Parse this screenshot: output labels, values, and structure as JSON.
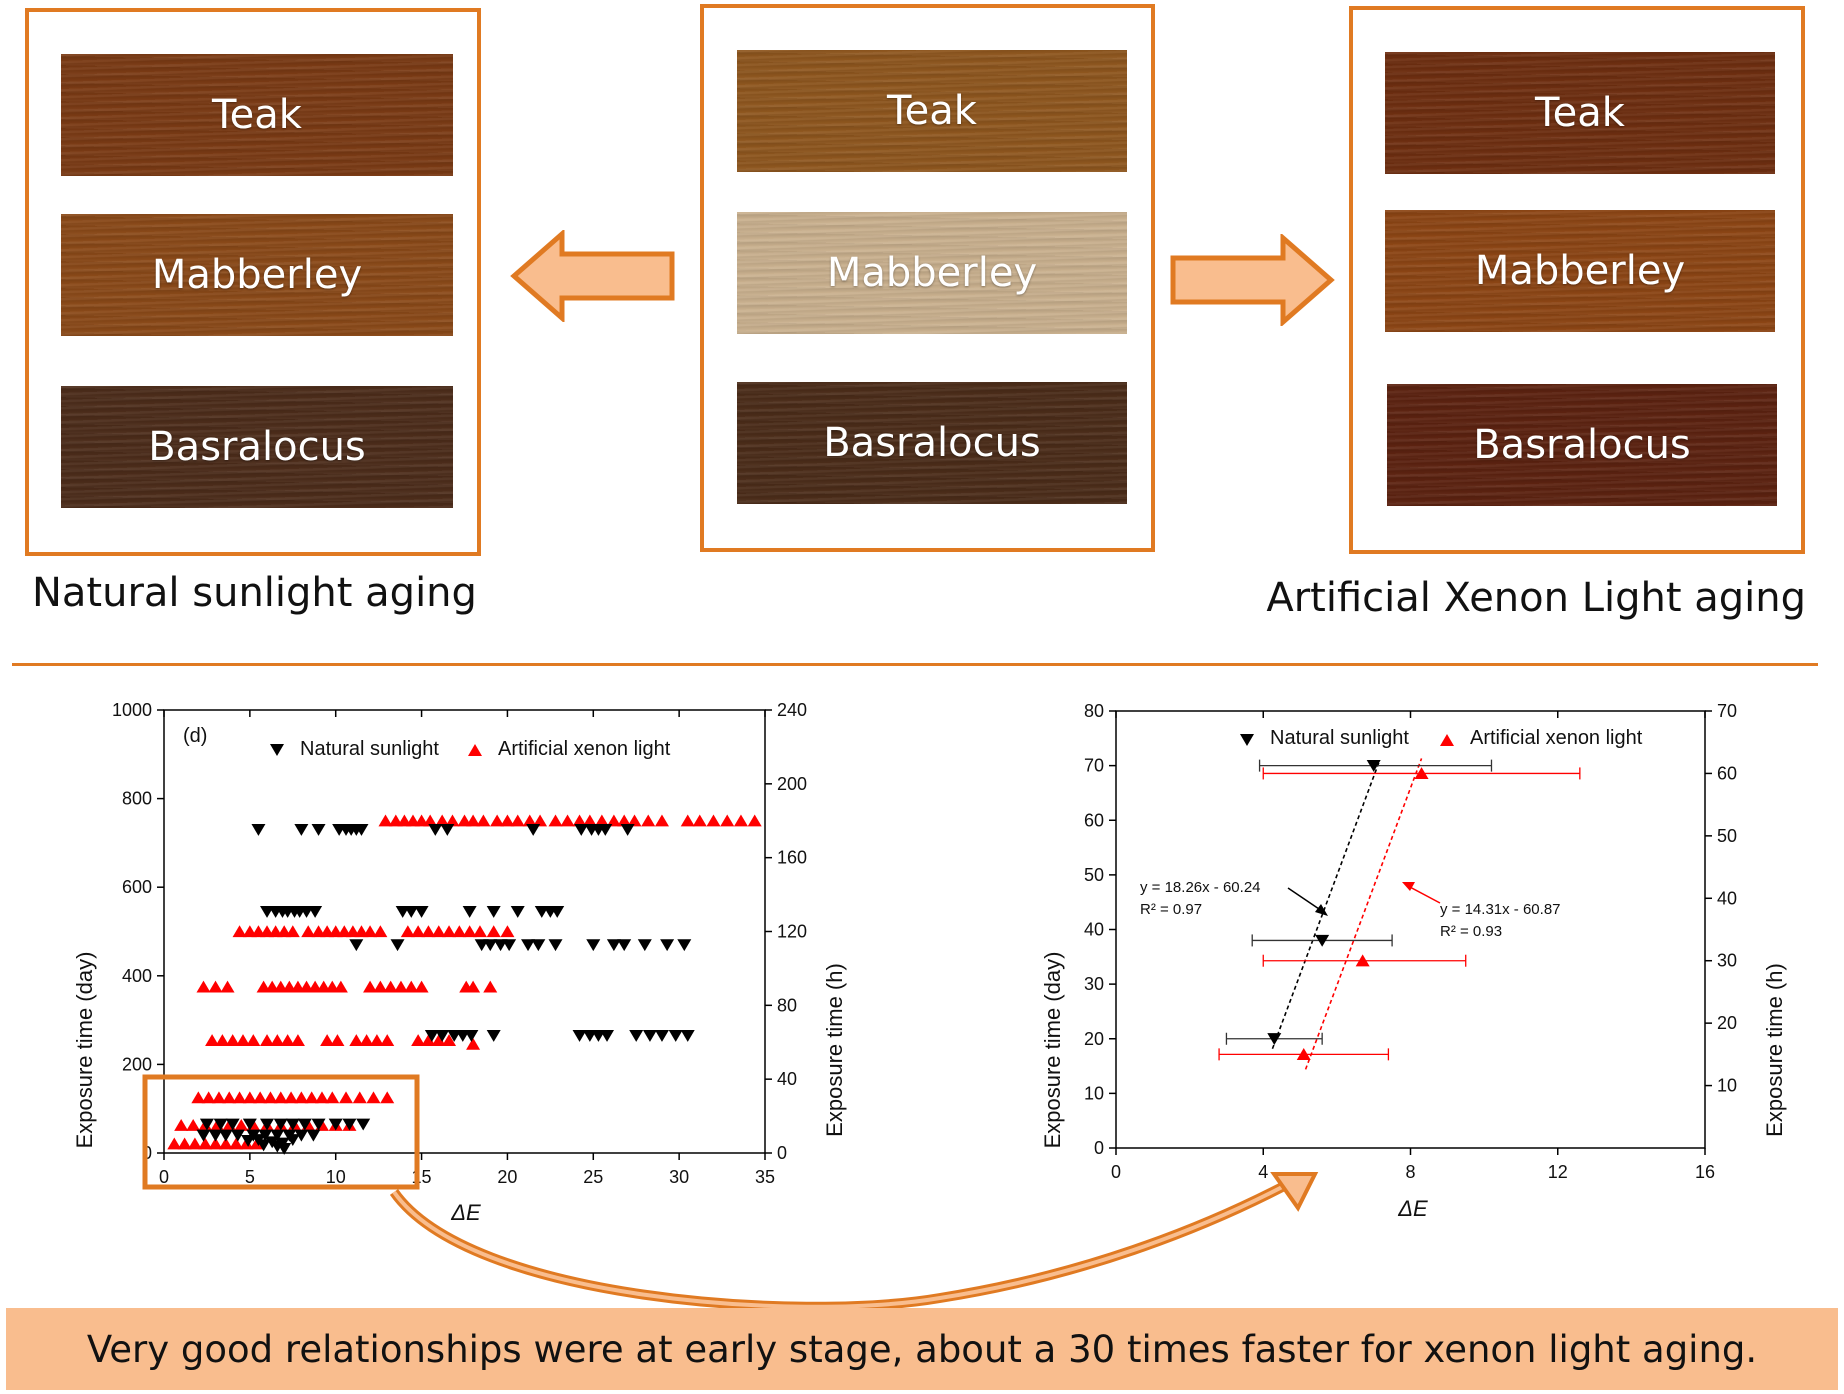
{
  "top": {
    "panels": [
      {
        "id": "natural",
        "swatches": [
          {
            "label": "Teak",
            "color": "#7a3a14"
          },
          {
            "label": "Mabberley",
            "color": "#8a4918"
          },
          {
            "label": "Basralocus",
            "color": "#4c2c1a"
          }
        ]
      },
      {
        "id": "original",
        "swatches": [
          {
            "label": "Teak",
            "color": "#8e561e"
          },
          {
            "label": "Mabberley",
            "color": "#c9b08e"
          },
          {
            "label": "Basralocus",
            "color": "#4b2c19"
          }
        ]
      },
      {
        "id": "xenon",
        "swatches": [
          {
            "label": "Teak",
            "color": "#6e2e10"
          },
          {
            "label": "Mabberley",
            "color": "#8c4514"
          },
          {
            "label": "Basralocus",
            "color": "#5c2210"
          }
        ]
      }
    ],
    "caption_left": "Natural sunlight aging",
    "caption_right": "Artificial Xenon Light aging",
    "accent_color": "#e07a22",
    "arrow_fill": "#f9bd8e"
  },
  "chart_data": [
    {
      "type": "scatter",
      "panel_label": "(d)",
      "xlabel": "ΔE",
      "ylabel": "Exposure time (day)",
      "y2label": "Exposure time (h)",
      "xlim": [
        0,
        35
      ],
      "ylim": [
        0,
        1000
      ],
      "y2lim": [
        0,
        240
      ],
      "xticks": [
        0,
        5,
        10,
        15,
        20,
        25,
        30,
        35
      ],
      "yticks": [
        0,
        200,
        400,
        600,
        800,
        1000
      ],
      "y2ticks": [
        0,
        40,
        80,
        120,
        160,
        200,
        240
      ],
      "legend_placement": "top",
      "series": [
        {
          "name": "Natural sunlight",
          "marker": "triangle-down",
          "color": "#000000",
          "axis": "y",
          "points": [
            [
              5.5,
              730
            ],
            [
              8.0,
              730
            ],
            [
              9.0,
              730
            ],
            [
              10.2,
              730
            ],
            [
              10.6,
              730
            ],
            [
              10.9,
              730
            ],
            [
              11.2,
              730
            ],
            [
              11.5,
              730
            ],
            [
              15.8,
              730
            ],
            [
              16.5,
              730
            ],
            [
              21.5,
              730
            ],
            [
              24.3,
              730
            ],
            [
              24.9,
              730
            ],
            [
              25.3,
              730
            ],
            [
              25.7,
              730
            ],
            [
              27.0,
              730
            ],
            [
              6.0,
              545
            ],
            [
              6.5,
              545
            ],
            [
              6.9,
              545
            ],
            [
              7.2,
              545
            ],
            [
              7.6,
              545
            ],
            [
              7.9,
              545
            ],
            [
              8.3,
              545
            ],
            [
              8.8,
              545
            ],
            [
              13.9,
              545
            ],
            [
              14.4,
              545
            ],
            [
              15.0,
              545
            ],
            [
              17.8,
              545
            ],
            [
              19.2,
              545
            ],
            [
              20.6,
              545
            ],
            [
              22.0,
              545
            ],
            [
              22.5,
              545
            ],
            [
              22.9,
              545
            ],
            [
              11.2,
              470
            ],
            [
              13.6,
              470
            ],
            [
              18.5,
              470
            ],
            [
              19.0,
              470
            ],
            [
              19.6,
              470
            ],
            [
              20.1,
              470
            ],
            [
              21.2,
              470
            ],
            [
              21.8,
              470
            ],
            [
              22.8,
              470
            ],
            [
              25.0,
              470
            ],
            [
              26.2,
              470
            ],
            [
              26.8,
              470
            ],
            [
              28.0,
              470
            ],
            [
              29.3,
              470
            ],
            [
              30.3,
              470
            ],
            [
              15.6,
              265
            ],
            [
              16.2,
              265
            ],
            [
              16.9,
              265
            ],
            [
              17.4,
              265
            ],
            [
              17.9,
              265
            ],
            [
              19.2,
              265
            ],
            [
              24.2,
              265
            ],
            [
              24.8,
              265
            ],
            [
              25.3,
              265
            ],
            [
              25.8,
              265
            ],
            [
              27.5,
              265
            ],
            [
              28.3,
              265
            ],
            [
              29.0,
              265
            ],
            [
              29.8,
              265
            ],
            [
              30.5,
              265
            ],
            [
              2.5,
              65
            ],
            [
              3.3,
              65
            ],
            [
              4.0,
              65
            ],
            [
              5.0,
              65
            ],
            [
              6.0,
              65
            ],
            [
              6.8,
              65
            ],
            [
              7.5,
              65
            ],
            [
              8.2,
              65
            ],
            [
              9.0,
              65
            ],
            [
              10.0,
              65
            ],
            [
              10.8,
              65
            ],
            [
              11.6,
              65
            ],
            [
              2.3,
              40
            ],
            [
              3.0,
              40
            ],
            [
              3.6,
              40
            ],
            [
              4.3,
              40
            ],
            [
              5.2,
              40
            ],
            [
              5.9,
              40
            ],
            [
              6.6,
              40
            ],
            [
              7.3,
              40
            ],
            [
              8.0,
              40
            ],
            [
              8.7,
              40
            ],
            [
              5.5,
              30
            ],
            [
              6.3,
              25
            ],
            [
              6.9,
              22
            ],
            [
              7.5,
              30
            ],
            [
              6.6,
              15
            ],
            [
              7.0,
              10
            ],
            [
              5.8,
              18
            ],
            [
              4.9,
              28
            ]
          ]
        },
        {
          "name": "Artificial xenon light",
          "marker": "triangle-up",
          "color": "#ff0000",
          "axis": "y2",
          "points": [
            [
              12.9,
              180
            ],
            [
              13.5,
              180
            ],
            [
              14.0,
              180
            ],
            [
              14.5,
              180
            ],
            [
              15.0,
              180
            ],
            [
              15.5,
              180
            ],
            [
              16.2,
              180
            ],
            [
              16.8,
              180
            ],
            [
              17.5,
              180
            ],
            [
              18.0,
              180
            ],
            [
              18.6,
              180
            ],
            [
              19.4,
              180
            ],
            [
              20.0,
              180
            ],
            [
              20.6,
              180
            ],
            [
              21.3,
              180
            ],
            [
              21.9,
              180
            ],
            [
              22.8,
              180
            ],
            [
              23.5,
              180
            ],
            [
              24.2,
              180
            ],
            [
              24.8,
              180
            ],
            [
              25.5,
              180
            ],
            [
              26.2,
              180
            ],
            [
              26.8,
              180
            ],
            [
              27.4,
              180
            ],
            [
              28.2,
              180
            ],
            [
              29.0,
              180
            ],
            [
              30.5,
              180
            ],
            [
              31.2,
              180
            ],
            [
              32.0,
              180
            ],
            [
              32.8,
              180
            ],
            [
              33.6,
              180
            ],
            [
              34.4,
              180
            ],
            [
              4.4,
              120
            ],
            [
              5.0,
              120
            ],
            [
              5.5,
              120
            ],
            [
              6.0,
              120
            ],
            [
              6.5,
              120
            ],
            [
              7.0,
              120
            ],
            [
              7.5,
              120
            ],
            [
              8.4,
              120
            ],
            [
              9.0,
              120
            ],
            [
              9.5,
              120
            ],
            [
              10.0,
              120
            ],
            [
              10.5,
              120
            ],
            [
              11.0,
              120
            ],
            [
              11.5,
              120
            ],
            [
              12.0,
              120
            ],
            [
              12.6,
              120
            ],
            [
              14.2,
              120
            ],
            [
              14.8,
              120
            ],
            [
              15.4,
              120
            ],
            [
              16.0,
              120
            ],
            [
              16.6,
              120
            ],
            [
              17.2,
              120
            ],
            [
              17.8,
              120
            ],
            [
              18.4,
              120
            ],
            [
              19.2,
              120
            ],
            [
              20.0,
              120
            ],
            [
              2.3,
              90
            ],
            [
              3.0,
              90
            ],
            [
              3.7,
              90
            ],
            [
              5.8,
              90
            ],
            [
              6.3,
              90
            ],
            [
              6.8,
              90
            ],
            [
              7.3,
              90
            ],
            [
              7.8,
              90
            ],
            [
              8.3,
              90
            ],
            [
              8.8,
              90
            ],
            [
              9.3,
              90
            ],
            [
              9.8,
              90
            ],
            [
              10.3,
              90
            ],
            [
              12.0,
              90
            ],
            [
              12.6,
              90
            ],
            [
              13.2,
              90
            ],
            [
              13.8,
              90
            ],
            [
              14.4,
              90
            ],
            [
              15.0,
              90
            ],
            [
              17.6,
              90
            ],
            [
              18.0,
              90
            ],
            [
              19.0,
              90
            ],
            [
              2.8,
              61
            ],
            [
              3.4,
              61
            ],
            [
              4.0,
              61
            ],
            [
              4.6,
              61
            ],
            [
              5.2,
              61
            ],
            [
              6.0,
              61
            ],
            [
              6.6,
              61
            ],
            [
              7.2,
              61
            ],
            [
              7.8,
              61
            ],
            [
              9.5,
              61
            ],
            [
              10.1,
              61
            ],
            [
              11.2,
              61
            ],
            [
              11.8,
              61
            ],
            [
              12.4,
              61
            ],
            [
              13.0,
              61
            ],
            [
              14.8,
              61
            ],
            [
              15.4,
              61
            ],
            [
              16.0,
              61
            ],
            [
              16.6,
              61
            ],
            [
              18.0,
              59
            ],
            [
              2.0,
              30
            ],
            [
              2.6,
              30
            ],
            [
              3.2,
              30
            ],
            [
              3.8,
              30
            ],
            [
              4.4,
              30
            ],
            [
              5.0,
              30
            ],
            [
              5.6,
              30
            ],
            [
              6.2,
              30
            ],
            [
              6.8,
              30
            ],
            [
              7.4,
              30
            ],
            [
              8.0,
              30
            ],
            [
              8.6,
              30
            ],
            [
              9.2,
              30
            ],
            [
              9.8,
              30
            ],
            [
              10.6,
              30
            ],
            [
              11.4,
              30
            ],
            [
              12.2,
              30
            ],
            [
              13.0,
              30
            ],
            [
              1.0,
              15
            ],
            [
              1.7,
              15
            ],
            [
              2.4,
              15
            ],
            [
              3.1,
              15
            ],
            [
              3.8,
              15
            ],
            [
              4.5,
              15
            ],
            [
              5.2,
              15
            ],
            [
              6.0,
              15
            ],
            [
              6.8,
              15
            ],
            [
              7.6,
              15
            ],
            [
              8.4,
              15
            ],
            [
              9.2,
              15
            ],
            [
              10.0,
              15
            ],
            [
              10.8,
              15
            ],
            [
              0.6,
              5
            ],
            [
              1.2,
              5
            ],
            [
              1.8,
              5
            ],
            [
              2.4,
              5
            ],
            [
              3.0,
              5
            ],
            [
              3.6,
              5
            ],
            [
              4.2,
              5
            ],
            [
              4.8,
              5
            ],
            [
              5.4,
              5
            ]
          ]
        }
      ]
    },
    {
      "type": "scatter",
      "xlabel": "ΔE",
      "ylabel": "Exposure time (day)",
      "y2label": "Exposure time (h)",
      "xlim": [
        0,
        16
      ],
      "ylim": [
        0,
        80
      ],
      "y2lim": [
        0,
        70
      ],
      "xticks": [
        0,
        4,
        8,
        12,
        16
      ],
      "yticks": [
        0,
        10,
        20,
        30,
        40,
        50,
        60,
        70,
        80
      ],
      "y2ticks": [
        10,
        20,
        30,
        40,
        50,
        60,
        70
      ],
      "legend_placement": "top",
      "series": [
        {
          "name": "Natural sunlight",
          "marker": "triangle-down",
          "color": "#000000",
          "axis": "y",
          "points": [
            [
              4.3,
              20,
              3.0,
              5.6
            ],
            [
              5.6,
              38,
              3.7,
              7.5
            ],
            [
              7.0,
              70,
              3.9,
              10.2
            ]
          ],
          "fit_line": {
            "x1": 4.25,
            "x2": 7.15
          },
          "fit_label": [
            "y = 18.26x - 60.24",
            "R² = 0.97"
          ]
        },
        {
          "name": "Artificial xenon light",
          "marker": "triangle-up",
          "color": "#ff0000",
          "axis": "y2",
          "points": [
            [
              5.1,
              15,
              2.8,
              7.4
            ],
            [
              6.7,
              30,
              4.0,
              9.5
            ],
            [
              8.3,
              60,
              4.0,
              12.6
            ]
          ],
          "fit_line": {
            "x1": 5.15,
            "x2": 8.3
          },
          "fit_label": [
            "y = 14.31x - 60.87",
            "R² = 0.93"
          ]
        }
      ]
    }
  ],
  "summary": "Very good relationships were at early stage, about a 30 times faster for xenon light aging."
}
